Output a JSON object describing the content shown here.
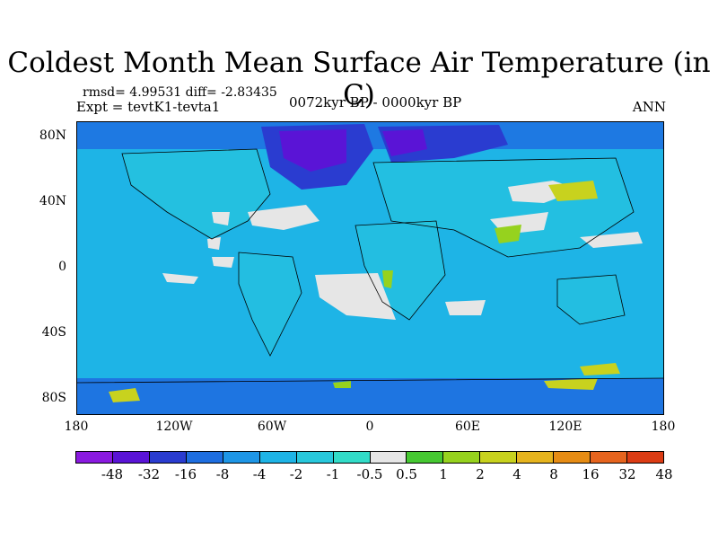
{
  "title": "Coldest Month Mean Surface Air Temperature (in C)",
  "stats": "rmsd= 4.99531  diff= -2.83435",
  "expt": "Expt = tevtK1-tevta1",
  "period": "0072kyr BP - 0000kyr BP",
  "season": "ANN",
  "y_ticks": [
    "80N",
    "40N",
    "0",
    "40S",
    "80S"
  ],
  "x_ticks": [
    "180",
    "120W",
    "60W",
    "0",
    "60E",
    "120E",
    "180"
  ],
  "colorbar": {
    "colors": [
      "#8a1ae0",
      "#5a14d6",
      "#2a3cd0",
      "#1e6ee0",
      "#1e96e6",
      "#1eb4e6",
      "#28c8dc",
      "#32dcc8",
      "#e6e6e6",
      "#46c832",
      "#96d21e",
      "#c8d21e",
      "#e6b41e",
      "#e68c14",
      "#e6641e",
      "#dc3c14"
    ],
    "labels": [
      "-48",
      "-32",
      "-16",
      "-8",
      "-4",
      "-2",
      "-1",
      "-0.5",
      "0.5",
      "1",
      "2",
      "4",
      "8",
      "16",
      "32",
      "48"
    ]
  },
  "map_colors": {
    "ocean": "#1eb4e6",
    "cold": "#1e6ee0",
    "very_cold": "#2a3cd0",
    "coldest": "#5a14d6",
    "neutral": "#e6e6e6",
    "warm": "#96d21e",
    "warmer": "#c8d21e",
    "land_teal": "#28c8dc"
  }
}
